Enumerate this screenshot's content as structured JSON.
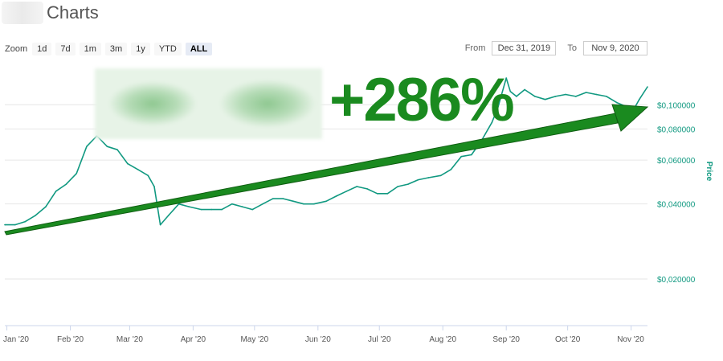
{
  "header": {
    "title": "Charts"
  },
  "zoom": {
    "label": "Zoom",
    "buttons": [
      "1d",
      "7d",
      "1m",
      "3m",
      "1y",
      "YTD",
      "ALL"
    ],
    "active": "ALL"
  },
  "range": {
    "from_label": "From",
    "from_value": "Dec 31, 2019",
    "to_label": "To",
    "to_value": "Nov 9, 2020"
  },
  "annotation": {
    "text": "+286%"
  },
  "colors": {
    "line": "#119981",
    "arrow": "#1a8a1f",
    "grid": "#e6e6e6"
  },
  "chart_data": {
    "type": "line",
    "ylabel": "Price",
    "yscale": "log",
    "ylim": [
      0.013,
      0.14
    ],
    "y_ticks": [
      {
        "value": 0.02,
        "label": "$0,020000"
      },
      {
        "value": 0.04,
        "label": "$0,040000"
      },
      {
        "value": 0.06,
        "label": "$0,060000"
      },
      {
        "value": 0.08,
        "label": "$0,080000"
      },
      {
        "value": 0.1,
        "label": "$0,100000"
      }
    ],
    "x_ticks": [
      "Jan '20",
      "Feb '20",
      "Mar '20",
      "Apr '20",
      "May '20",
      "Jun '20",
      "Jul '20",
      "Aug '20",
      "Sep '20",
      "Oct '20",
      "Nov '20"
    ],
    "x_range": [
      "2019-12-31",
      "2020-11-09"
    ],
    "series": [
      {
        "x": [
          "2019-12-31",
          "2020-01-05",
          "2020-01-10",
          "2020-01-15",
          "2020-01-20",
          "2020-01-25",
          "2020-01-30",
          "2020-02-04",
          "2020-02-09",
          "2020-02-14",
          "2020-02-19",
          "2020-02-24",
          "2020-02-29",
          "2020-03-05",
          "2020-03-10",
          "2020-03-13",
          "2020-03-16",
          "2020-03-20",
          "2020-03-25",
          "2020-03-30",
          "2020-04-05",
          "2020-04-10",
          "2020-04-15",
          "2020-04-20",
          "2020-04-25",
          "2020-04-30",
          "2020-05-05",
          "2020-05-10",
          "2020-05-15",
          "2020-05-20",
          "2020-05-25",
          "2020-05-30",
          "2020-06-05",
          "2020-06-10",
          "2020-06-15",
          "2020-06-20",
          "2020-06-25",
          "2020-06-30",
          "2020-07-05",
          "2020-07-10",
          "2020-07-15",
          "2020-07-20",
          "2020-07-25",
          "2020-07-31",
          "2020-08-05",
          "2020-08-10",
          "2020-08-15",
          "2020-08-20",
          "2020-08-25",
          "2020-08-28",
          "2020-09-01",
          "2020-09-03",
          "2020-09-06",
          "2020-09-10",
          "2020-09-15",
          "2020-09-20",
          "2020-09-25",
          "2020-09-30",
          "2020-10-05",
          "2020-10-10",
          "2020-10-15",
          "2020-10-20",
          "2020-10-25",
          "2020-10-30",
          "2020-11-02",
          "2020-11-05",
          "2020-11-09"
        ],
        "y": [
          0.033,
          0.033,
          0.034,
          0.036,
          0.039,
          0.045,
          0.048,
          0.053,
          0.068,
          0.075,
          0.068,
          0.066,
          0.058,
          0.055,
          0.052,
          0.047,
          0.033,
          0.036,
          0.04,
          0.039,
          0.038,
          0.038,
          0.038,
          0.04,
          0.039,
          0.038,
          0.04,
          0.042,
          0.042,
          0.041,
          0.04,
          0.04,
          0.041,
          0.043,
          0.045,
          0.047,
          0.046,
          0.044,
          0.044,
          0.047,
          0.048,
          0.05,
          0.051,
          0.052,
          0.055,
          0.062,
          0.063,
          0.072,
          0.085,
          0.098,
          0.128,
          0.113,
          0.108,
          0.115,
          0.108,
          0.105,
          0.108,
          0.11,
          0.108,
          0.112,
          0.11,
          0.108,
          0.102,
          0.098,
          0.095,
          0.105,
          0.118
        ]
      }
    ]
  }
}
